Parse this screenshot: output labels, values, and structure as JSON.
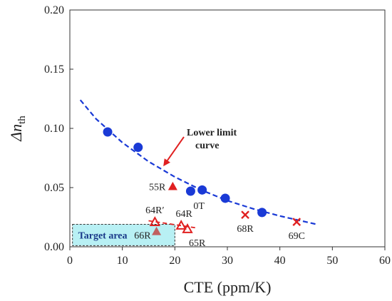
{
  "chart_data": {
    "type": "scatter",
    "xlabel": "CTE (ppm/K)",
    "ylabel": {
      "main": "Δn",
      "sub": "th"
    },
    "xlim": [
      0,
      60
    ],
    "ylim": [
      0,
      0.2
    ],
    "xticks": [
      "0",
      "10",
      "20",
      "30",
      "40",
      "50",
      "60"
    ],
    "yticks": [
      "0.00",
      "0.05",
      "0.10",
      "0.15",
      "0.20"
    ],
    "grid": false,
    "colors": {
      "circle": "#1a3ad6",
      "triangle": "#e02020",
      "cross": "#e02020",
      "curve": "#1a3ad6",
      "target_fill": "#b8f0f4"
    },
    "circles": {
      "x": [
        7.2,
        13,
        23,
        25.2,
        29.6,
        36.6
      ],
      "y": [
        0.097,
        0.084,
        0.047,
        0.048,
        0.041,
        0.029
      ]
    },
    "filled_triangles": [
      {
        "x": 19.6,
        "y": 0.051,
        "label": "55R",
        "color": "#e02020"
      },
      {
        "x": 16.5,
        "y": 0.013,
        "label": "66R",
        "color": "#c06060"
      }
    ],
    "open_triangles": [
      {
        "x": 16.2,
        "y": 0.021,
        "label": "64R′"
      },
      {
        "x": 21.2,
        "y": 0.018,
        "label": "64R"
      },
      {
        "x": 22.4,
        "y": 0.015,
        "label": "65R"
      }
    ],
    "crosses": [
      {
        "x": 33.4,
        "y": 0.027,
        "label": "68R"
      },
      {
        "x": 43.2,
        "y": 0.021,
        "label": "69C"
      }
    ],
    "circle_label": {
      "x": 23,
      "y": 0.047,
      "label": "0T"
    },
    "lower_limit_curve": {
      "x": [
        2,
        5,
        10,
        15,
        20,
        25,
        30,
        35,
        40,
        47
      ],
      "y": [
        0.124,
        0.108,
        0.088,
        0.072,
        0.059,
        0.048,
        0.039,
        0.032,
        0.026,
        0.019
      ]
    },
    "short_dashed_line": {
      "x": [
        15,
        24
      ],
      "y": [
        0.022,
        0.016
      ]
    },
    "annotation": {
      "lines": [
        "Lower limit",
        "curve"
      ],
      "arrow_to": {
        "x": 17.8,
        "y": 0.068
      }
    },
    "target_area": {
      "label": "Target area",
      "x": [
        0.5,
        20
      ],
      "y": [
        0.001,
        0.019
      ]
    }
  }
}
